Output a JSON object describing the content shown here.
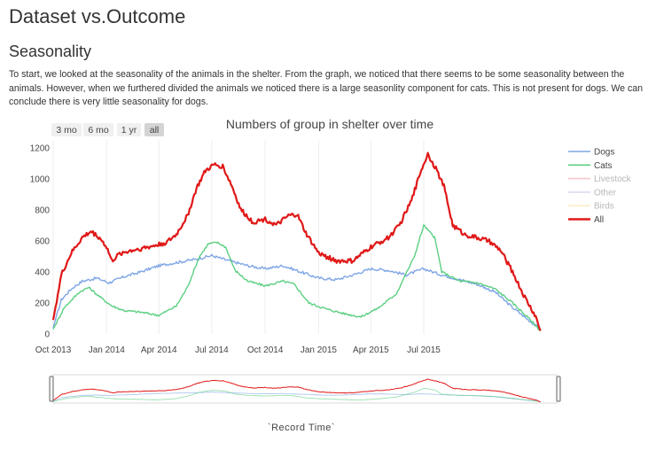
{
  "page": {
    "title": "Dataset vs.Outcome",
    "section": "Seasonality",
    "paragraph": "To start, we looked at the seasonality of the animals in the shelter. From the graph, we noticed that there seems to be some seasonality between the animals. However, when we furthered divided the animals we noticed there is a large seasonlity component for cats. This is not present for dogs. We can conclude there is very little seasonality for dogs."
  },
  "range_selector": {
    "buttons": [
      {
        "label": "3 mo",
        "active": false
      },
      {
        "label": "6 mo",
        "active": false
      },
      {
        "label": "1 yr",
        "active": false
      },
      {
        "label": "all",
        "active": true
      }
    ]
  },
  "chart_data": {
    "type": "line",
    "title": "Numbers of group in shelter over time",
    "xlabel": "`Record Time`",
    "ylabel": "",
    "x_ticks": [
      "Oct 2013",
      "Jan 2014",
      "Apr 2014",
      "Jul 2014",
      "Oct 2014",
      "Jan 2015",
      "Apr 2015",
      "Jul 2015"
    ],
    "y_ticks": [
      0,
      200,
      400,
      600,
      800,
      1000,
      1200
    ],
    "xlim": [
      "2013-10-01",
      "2016-02-15"
    ],
    "ylim": [
      0,
      1250
    ],
    "grid": "vertical",
    "legend_position": "right",
    "range_slider": true,
    "series": [
      {
        "name": "Dogs",
        "color": "#7fa6e6",
        "visible": true,
        "points": [
          [
            "2013-10-01",
            40
          ],
          [
            "2013-10-15",
            220
          ],
          [
            "2013-11-01",
            290
          ],
          [
            "2013-11-20",
            340
          ],
          [
            "2013-12-15",
            360
          ],
          [
            "2014-01-05",
            330
          ],
          [
            "2014-02-01",
            370
          ],
          [
            "2014-03-01",
            400
          ],
          [
            "2014-04-01",
            440
          ],
          [
            "2014-05-01",
            460
          ],
          [
            "2014-06-01",
            480
          ],
          [
            "2014-07-01",
            505
          ],
          [
            "2014-08-01",
            470
          ],
          [
            "2014-09-01",
            440
          ],
          [
            "2014-10-01",
            420
          ],
          [
            "2014-11-01",
            440
          ],
          [
            "2014-12-01",
            400
          ],
          [
            "2015-01-01",
            360
          ],
          [
            "2015-02-01",
            350
          ],
          [
            "2015-03-01",
            380
          ],
          [
            "2015-04-01",
            420
          ],
          [
            "2015-05-01",
            410
          ],
          [
            "2015-06-01",
            380
          ],
          [
            "2015-07-01",
            420
          ],
          [
            "2015-08-01",
            380
          ],
          [
            "2015-09-01",
            350
          ],
          [
            "2015-10-01",
            320
          ],
          [
            "2015-11-01",
            270
          ],
          [
            "2015-12-01",
            170
          ],
          [
            "2016-01-01",
            80
          ],
          [
            "2016-01-18",
            30
          ]
        ]
      },
      {
        "name": "Cats",
        "color": "#5ccf82",
        "visible": true,
        "points": [
          [
            "2013-10-01",
            30
          ],
          [
            "2013-10-20",
            170
          ],
          [
            "2013-11-15",
            270
          ],
          [
            "2013-12-01",
            300
          ],
          [
            "2013-12-20",
            240
          ],
          [
            "2014-01-10",
            180
          ],
          [
            "2014-02-01",
            150
          ],
          [
            "2014-03-01",
            140
          ],
          [
            "2014-04-01",
            120
          ],
          [
            "2014-05-01",
            180
          ],
          [
            "2014-05-20",
            300
          ],
          [
            "2014-06-10",
            500
          ],
          [
            "2014-06-25",
            580
          ],
          [
            "2014-07-10",
            590
          ],
          [
            "2014-07-25",
            560
          ],
          [
            "2014-08-10",
            410
          ],
          [
            "2014-09-01",
            340
          ],
          [
            "2014-10-01",
            310
          ],
          [
            "2014-11-01",
            340
          ],
          [
            "2014-11-20",
            320
          ],
          [
            "2014-12-15",
            200
          ],
          [
            "2015-01-15",
            160
          ],
          [
            "2015-02-15",
            130
          ],
          [
            "2015-03-15",
            110
          ],
          [
            "2015-04-15",
            170
          ],
          [
            "2015-05-15",
            260
          ],
          [
            "2015-06-15",
            500
          ],
          [
            "2015-07-01",
            700
          ],
          [
            "2015-07-20",
            620
          ],
          [
            "2015-08-01",
            400
          ],
          [
            "2015-09-01",
            340
          ],
          [
            "2015-10-01",
            330
          ],
          [
            "2015-11-01",
            290
          ],
          [
            "2015-12-01",
            200
          ],
          [
            "2016-01-01",
            90
          ],
          [
            "2016-01-18",
            20
          ]
        ]
      },
      {
        "name": "Livestock",
        "color": "#f4a6a6",
        "visible": false,
        "points": []
      },
      {
        "name": "Other",
        "color": "#c3c6e8",
        "visible": false,
        "points": []
      },
      {
        "name": "Birds",
        "color": "#f7e1a0",
        "visible": false,
        "points": []
      },
      {
        "name": "All",
        "color": "#e01818",
        "visible": true,
        "points": [
          [
            "2013-10-01",
            90
          ],
          [
            "2013-10-15",
            380
          ],
          [
            "2013-11-01",
            520
          ],
          [
            "2013-11-20",
            620
          ],
          [
            "2013-12-05",
            660
          ],
          [
            "2013-12-20",
            620
          ],
          [
            "2014-01-01",
            560
          ],
          [
            "2014-01-10",
            470
          ],
          [
            "2014-01-25",
            520
          ],
          [
            "2014-02-15",
            540
          ],
          [
            "2014-03-15",
            560
          ],
          [
            "2014-04-15",
            590
          ],
          [
            "2014-05-01",
            640
          ],
          [
            "2014-05-20",
            760
          ],
          [
            "2014-06-05",
            940
          ],
          [
            "2014-06-20",
            1050
          ],
          [
            "2014-07-05",
            1090
          ],
          [
            "2014-07-20",
            1080
          ],
          [
            "2014-08-05",
            950
          ],
          [
            "2014-08-20",
            800
          ],
          [
            "2014-09-10",
            720
          ],
          [
            "2014-10-01",
            740
          ],
          [
            "2014-10-20",
            700
          ],
          [
            "2014-11-10",
            760
          ],
          [
            "2014-11-25",
            770
          ],
          [
            "2014-12-10",
            650
          ],
          [
            "2015-01-01",
            520
          ],
          [
            "2015-02-01",
            470
          ],
          [
            "2015-03-01",
            470
          ],
          [
            "2015-04-01",
            560
          ],
          [
            "2015-05-01",
            620
          ],
          [
            "2015-05-20",
            700
          ],
          [
            "2015-06-10",
            860
          ],
          [
            "2015-06-25",
            1040
          ],
          [
            "2015-07-08",
            1160
          ],
          [
            "2015-07-20",
            1080
          ],
          [
            "2015-08-05",
            950
          ],
          [
            "2015-08-20",
            700
          ],
          [
            "2015-09-10",
            640
          ],
          [
            "2015-10-01",
            620
          ],
          [
            "2015-10-20",
            600
          ],
          [
            "2015-11-10",
            540
          ],
          [
            "2015-12-01",
            400
          ],
          [
            "2015-12-20",
            250
          ],
          [
            "2016-01-10",
            110
          ],
          [
            "2016-01-18",
            20
          ]
        ]
      }
    ]
  }
}
